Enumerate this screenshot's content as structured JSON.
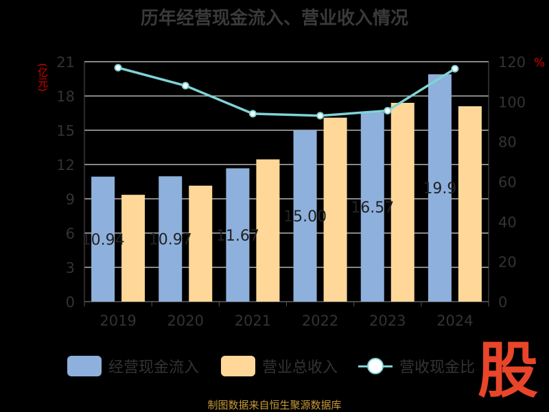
{
  "title": "历年经营现金流入、营业收入情况",
  "unit_left": "(亿元)",
  "unit_right": "%",
  "legend": {
    "cash_inflow": "经营现金流入",
    "revenue": "营业总收入",
    "ratio": "营收现金比"
  },
  "watermark": "股",
  "source": "制图数据来自恒生聚源数据库",
  "colors": {
    "cash_inflow": "#8eb0dc",
    "revenue": "#ffd899",
    "ratio": "#7fd3d6"
  },
  "chart_data": {
    "type": "bar",
    "categories": [
      "2019",
      "2020",
      "2021",
      "2022",
      "2023",
      "2024"
    ],
    "series": [
      {
        "name": "经营现金流入",
        "type": "bar",
        "axis": "left",
        "values": [
          10.94,
          10.97,
          11.67,
          15.0,
          16.57,
          19.9
        ],
        "labels": [
          "10.94",
          "10.97",
          "11.67",
          "15.00",
          "16.57",
          "19.9"
        ]
      },
      {
        "name": "营业总收入",
        "type": "bar",
        "axis": "left",
        "values": [
          9.35,
          10.15,
          12.45,
          16.1,
          17.4,
          17.1
        ]
      },
      {
        "name": "营收现金比",
        "type": "line",
        "axis": "right",
        "values": [
          117,
          108,
          94,
          93,
          95.5,
          116.5
        ]
      }
    ],
    "y_left": {
      "min": 0,
      "max": 21,
      "ticks": [
        0,
        3,
        6,
        9,
        12,
        15,
        18,
        21
      ]
    },
    "y_right": {
      "min": 0,
      "max": 120,
      "ticks": [
        0,
        20,
        40,
        60,
        80,
        100,
        120
      ]
    },
    "grid": true,
    "legend_position": "bottom"
  }
}
